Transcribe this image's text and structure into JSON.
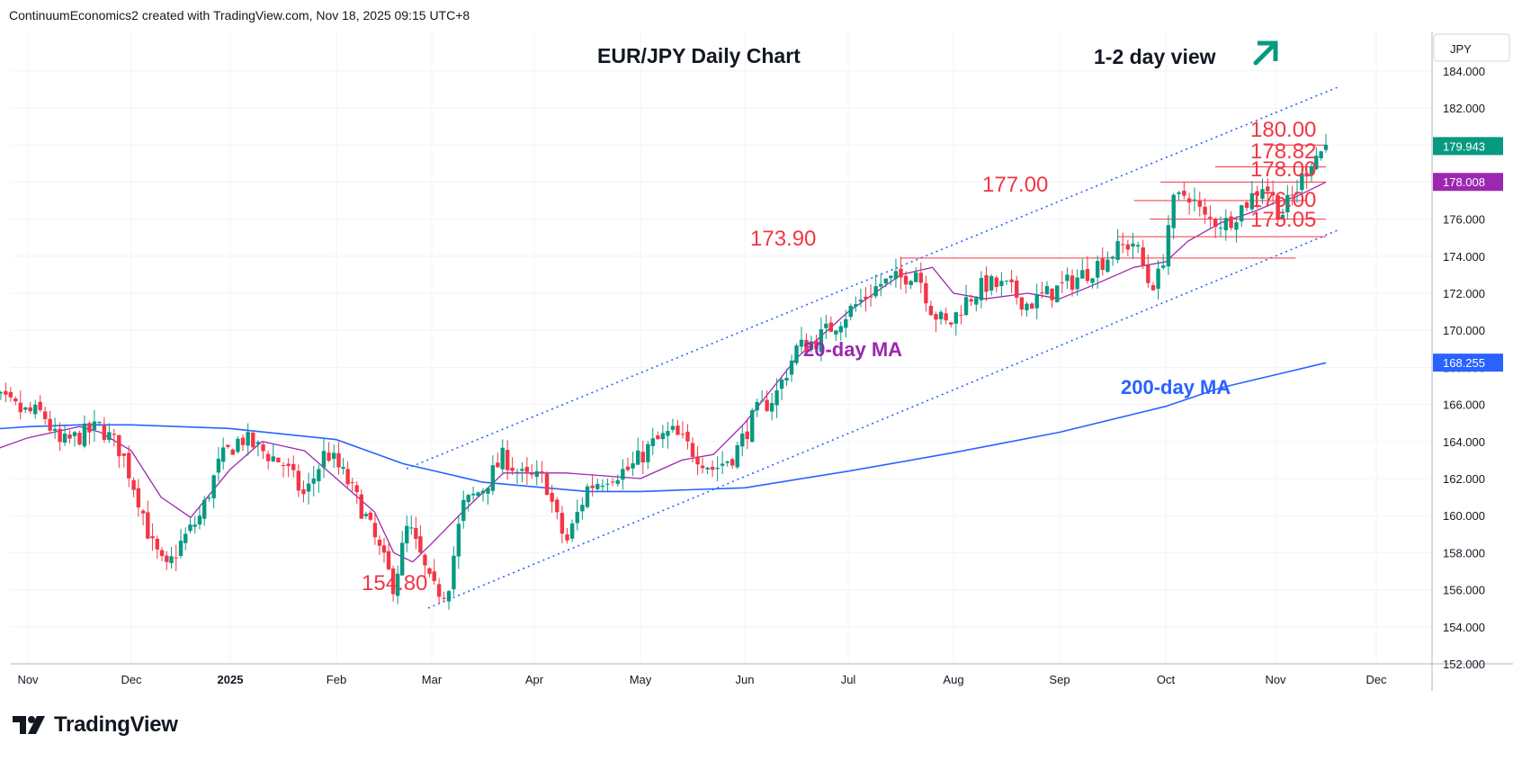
{
  "header": {
    "text": "ContinuumEconomics2 created with TradingView.com, Nov 18, 2025 09:15 UTC+8"
  },
  "brand": {
    "name": "TradingView"
  },
  "chart_data": {
    "type": "candlestick",
    "title": "EUR/JPY Daily Chart",
    "view_label": "1-2 day view",
    "view_arrow": "up-right-arrow",
    "currency": "JPY",
    "ylim": [
      152,
      186
    ],
    "y_ticks": [
      "184.000",
      "182.000",
      "180.000",
      "178.000",
      "176.000",
      "174.000",
      "172.000",
      "170.000",
      "168.000",
      "166.000",
      "164.000",
      "162.000",
      "160.000",
      "158.000",
      "156.000",
      "154.000",
      "152.000"
    ],
    "x_ticks": [
      "Nov",
      "Dec",
      "2025",
      "Feb",
      "Mar",
      "Apr",
      "May",
      "Jun",
      "Jul",
      "Aug",
      "Sep",
      "Oct",
      "Nov",
      "Dec"
    ],
    "last_price": {
      "label": "179.943",
      "value": 179.943,
      "color": "#089981"
    },
    "ma20_price": {
      "label": "178.008",
      "value": 178.008,
      "color": "#9c27b0"
    },
    "ma200_price": {
      "label": "168.255",
      "value": 168.255,
      "color": "#2962ff"
    },
    "levels": [
      {
        "label": "180.00",
        "value": 180.0
      },
      {
        "label": "178.82",
        "value": 178.82
      },
      {
        "label": "178.00",
        "value": 178.0
      },
      {
        "label": "177.00",
        "value": 177.0
      },
      {
        "label": "176.00",
        "value": 176.0
      },
      {
        "label": "175.05",
        "value": 175.05
      },
      {
        "label": "173.90",
        "value": 173.9
      },
      {
        "label": "154.80",
        "value": 154.8
      }
    ],
    "annotations": [
      {
        "label": "20-day MA",
        "color": "#9c27b0"
      },
      {
        "label": "200-day MA",
        "color": "#2962ff"
      }
    ],
    "channel": {
      "upper": [
        [
          0.0,
          164.3
        ],
        [
          1.0,
          183.0
        ]
      ],
      "lower": [
        [
          0.0,
          154.8
        ],
        [
          1.0,
          174.9
        ]
      ],
      "color": "#2962ff"
    },
    "ma200": [
      [
        -0.5,
        164.6
      ],
      [
        0,
        164.8
      ],
      [
        0.5,
        164.9
      ],
      [
        1,
        164.9
      ],
      [
        2,
        164.7
      ],
      [
        3,
        164.1
      ],
      [
        3.7,
        162.8
      ],
      [
        4.5,
        161.8
      ],
      [
        5.5,
        161.3
      ],
      [
        6,
        161.3
      ],
      [
        7,
        161.5
      ],
      [
        8,
        162.4
      ],
      [
        9,
        163.4
      ],
      [
        10,
        164.5
      ],
      [
        11,
        165.9
      ],
      [
        11.5,
        166.9
      ],
      [
        12,
        167.6
      ],
      [
        12.5,
        168.25
      ]
    ],
    "ma20": [
      [
        -0.5,
        163.2
      ],
      [
        0,
        164.2
      ],
      [
        0.5,
        164.8
      ],
      [
        0.7,
        164.5
      ],
      [
        1.0,
        163.5
      ],
      [
        1.3,
        161.0
      ],
      [
        1.6,
        159.9
      ],
      [
        2.0,
        162.5
      ],
      [
        2.3,
        164.0
      ],
      [
        2.7,
        163.5
      ],
      [
        3.0,
        162.0
      ],
      [
        3.4,
        160.2
      ],
      [
        3.6,
        158.0
      ],
      [
        3.8,
        157.5
      ],
      [
        4.0,
        158.5
      ],
      [
        4.3,
        160.2
      ],
      [
        4.7,
        162.3
      ],
      [
        5.3,
        162.3
      ],
      [
        6.0,
        162.0
      ],
      [
        6.4,
        163.0
      ],
      [
        6.7,
        163.3
      ],
      [
        7.0,
        165.0
      ],
      [
        7.5,
        168.5
      ],
      [
        8.0,
        171.0
      ],
      [
        8.5,
        173.0
      ],
      [
        8.8,
        173.4
      ],
      [
        9.0,
        172.0
      ],
      [
        9.3,
        171.7
      ],
      [
        9.7,
        172.0
      ],
      [
        10.0,
        171.7
      ],
      [
        10.3,
        172.4
      ],
      [
        10.7,
        173.4
      ],
      [
        11.0,
        173.7
      ],
      [
        11.2,
        174.8
      ],
      [
        11.5,
        175.8
      ],
      [
        11.8,
        176.4
      ],
      [
        12.0,
        176.9
      ],
      [
        12.2,
        177.2
      ],
      [
        12.5,
        178.0
      ]
    ],
    "hlines": [
      {
        "value": 180.0,
        "x0": 11.9,
        "x1": 12.5
      },
      {
        "value": 178.82,
        "x0": 11.45,
        "x1": 12.5
      },
      {
        "value": 178.0,
        "x0": 10.95,
        "x1": 12.5
      },
      {
        "value": 177.0,
        "x0": 10.7,
        "x1": 12.3
      },
      {
        "value": 176.0,
        "x0": 10.85,
        "x1": 12.5
      },
      {
        "value": 175.05,
        "x0": 10.55,
        "x1": 12.5
      },
      {
        "value": 173.9,
        "x0": 8.5,
        "x1": 12.2
      }
    ],
    "price_path": [
      [
        -0.5,
        165.7
      ],
      [
        -0.3,
        166.3
      ],
      [
        -0.05,
        165.6
      ],
      [
        0.15,
        165.5
      ],
      [
        0.3,
        163.8
      ],
      [
        0.5,
        164.3
      ],
      [
        0.7,
        164.8
      ],
      [
        0.9,
        163.5
      ],
      [
        1.1,
        160.5
      ],
      [
        1.2,
        158.5
      ],
      [
        1.35,
        157.0
      ],
      [
        1.5,
        158.5
      ],
      [
        1.7,
        160.0
      ],
      [
        1.9,
        163.0
      ],
      [
        2.1,
        164.2
      ],
      [
        2.3,
        163.5
      ],
      [
        2.5,
        162.8
      ],
      [
        2.7,
        161.0
      ],
      [
        2.9,
        163.5
      ],
      [
        3.1,
        162.0
      ],
      [
        3.3,
        160.0
      ],
      [
        3.5,
        157.5
      ],
      [
        3.6,
        156.2
      ],
      [
        3.75,
        159.5
      ],
      [
        3.9,
        157.5
      ],
      [
        4.0,
        156.0
      ],
      [
        4.15,
        155.9
      ],
      [
        4.3,
        160.5
      ],
      [
        4.5,
        161.5
      ],
      [
        4.7,
        163.2
      ],
      [
        4.9,
        162.0
      ],
      [
        5.1,
        162.0
      ],
      [
        5.2,
        160.0
      ],
      [
        5.3,
        158.5
      ],
      [
        5.5,
        161.5
      ],
      [
        5.7,
        162.2
      ],
      [
        5.9,
        162.5
      ],
      [
        6.1,
        163.8
      ],
      [
        6.3,
        164.5
      ],
      [
        6.5,
        163.5
      ],
      [
        6.7,
        162.5
      ],
      [
        6.9,
        163.3
      ],
      [
        7.1,
        165.5
      ],
      [
        7.3,
        166.5
      ],
      [
        7.5,
        169.0
      ],
      [
        7.7,
        169.5
      ],
      [
        7.9,
        170.5
      ],
      [
        8.1,
        171.5
      ],
      [
        8.3,
        172.5
      ],
      [
        8.5,
        172.8
      ],
      [
        8.65,
        173.3
      ],
      [
        8.8,
        171.0
      ],
      [
        8.95,
        170.2
      ],
      [
        9.1,
        171.5
      ],
      [
        9.3,
        172.5
      ],
      [
        9.5,
        172.3
      ],
      [
        9.7,
        171.4
      ],
      [
        9.9,
        172.0
      ],
      [
        10.1,
        172.6
      ],
      [
        10.3,
        173.3
      ],
      [
        10.5,
        174.2
      ],
      [
        10.7,
        174.8
      ],
      [
        10.85,
        172.4
      ],
      [
        10.95,
        173.0
      ],
      [
        11.05,
        176.7
      ],
      [
        11.2,
        177.5
      ],
      [
        11.35,
        176.0
      ],
      [
        11.55,
        175.8
      ],
      [
        11.75,
        177.0
      ],
      [
        11.9,
        178.0
      ],
      [
        12.05,
        176.2
      ],
      [
        12.2,
        177.5
      ],
      [
        12.35,
        179.2
      ],
      [
        12.5,
        179.94
      ]
    ]
  }
}
